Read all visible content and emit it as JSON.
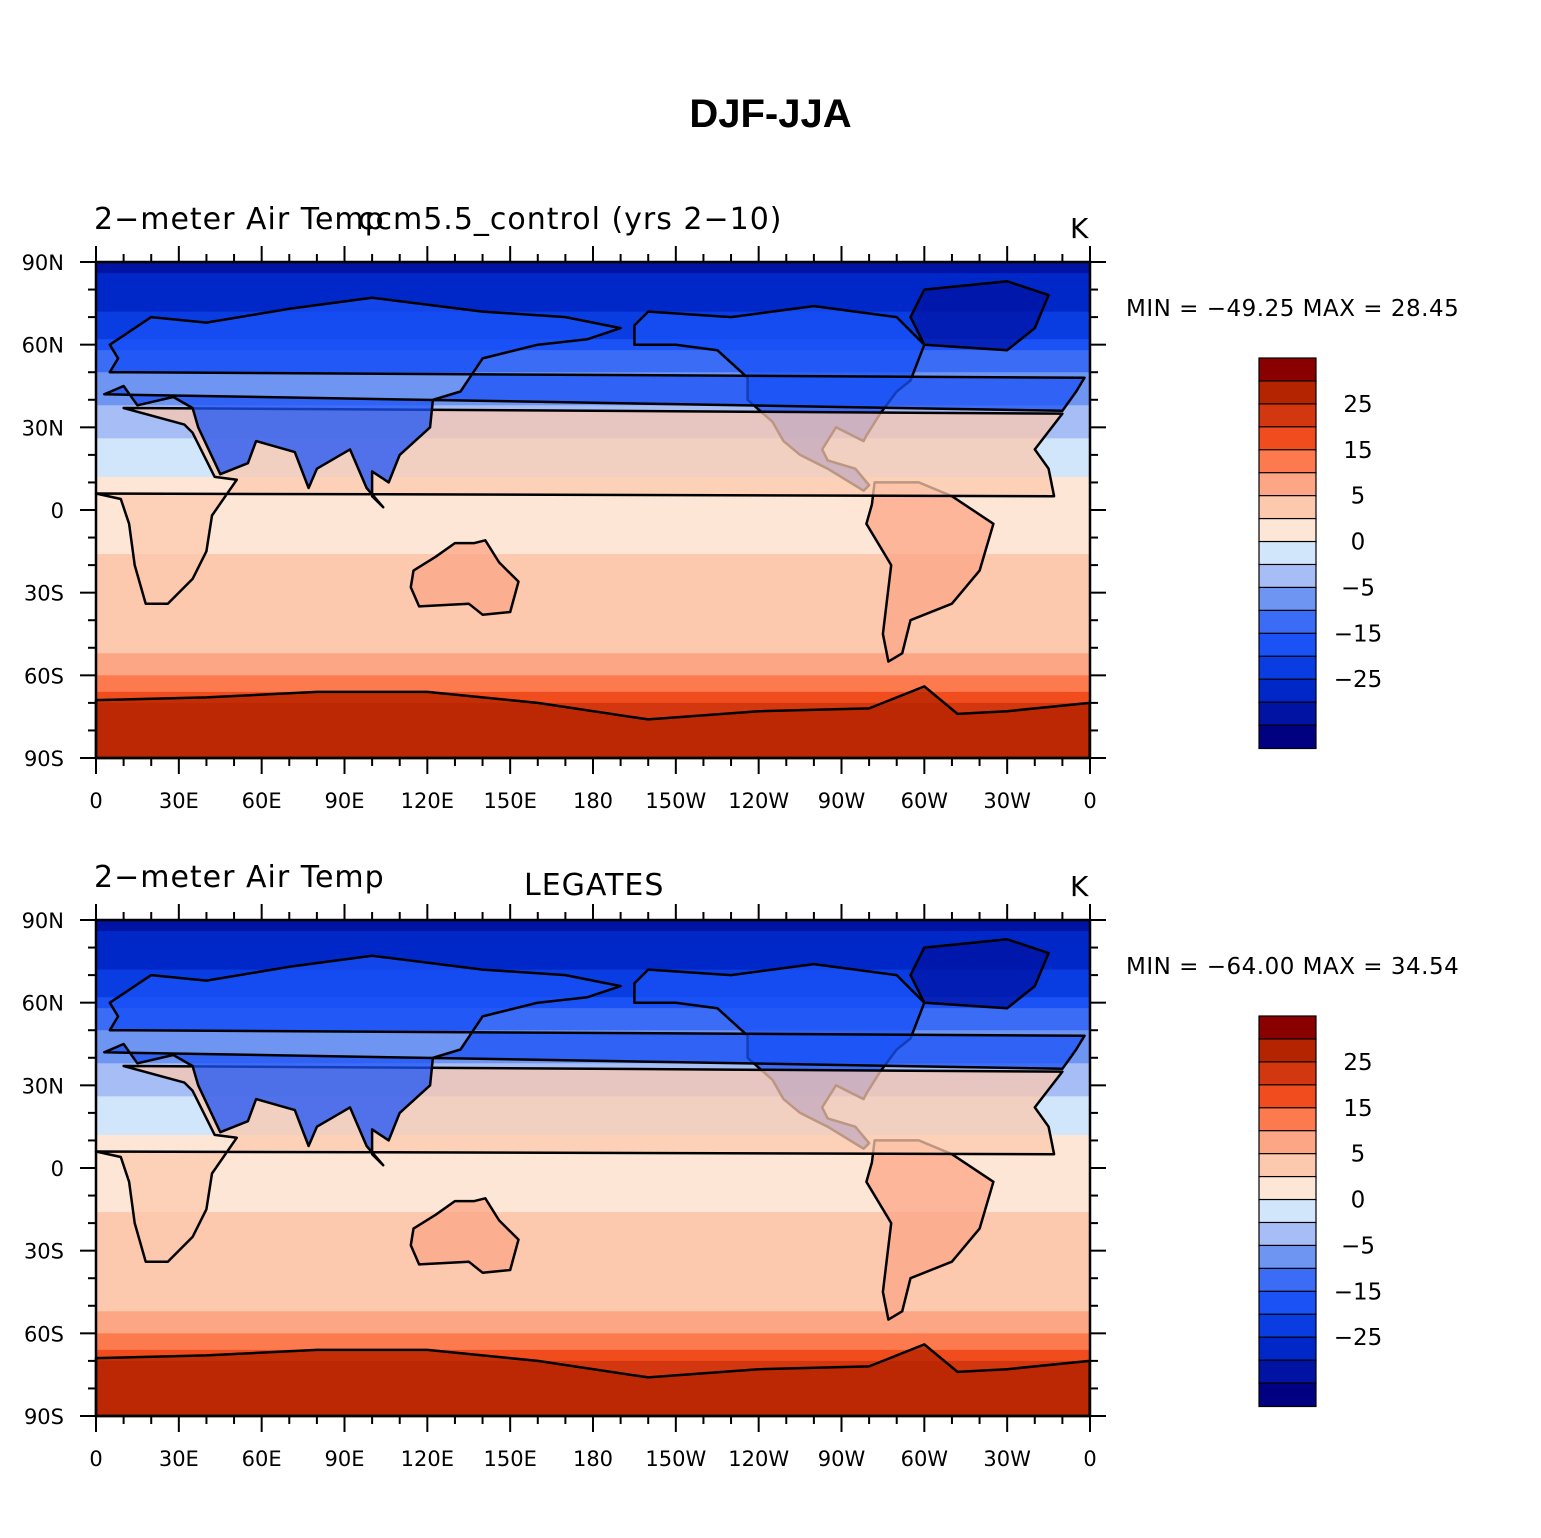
{
  "title": "DJF-JJA",
  "colorbar": {
    "colors": [
      "#000080",
      "#0013a3",
      "#0027c7",
      "#0a3de1",
      "#1a52f5",
      "#3a6cf5",
      "#6f95f2",
      "#a6bdf5",
      "#d2e6fb",
      "#fde6d6",
      "#fcc8ae",
      "#fca686",
      "#fc7a4e",
      "#f04c1e",
      "#d23710",
      "#b52400",
      "#8a0000"
    ],
    "labels": [
      "25",
      "15",
      "5",
      "0",
      "−5",
      "−15",
      "−25"
    ]
  },
  "axis": {
    "lat_labels": [
      "90N",
      "60N",
      "30N",
      "0",
      "30S",
      "60S",
      "90S"
    ],
    "lon_labels": [
      "0",
      "30E",
      "60E",
      "90E",
      "120E",
      "150E",
      "180",
      "150W",
      "120W",
      "90W",
      "60W",
      "30W",
      "0"
    ]
  },
  "panels": [
    {
      "left_title": "2−meter Air Temp",
      "center_title": "ccm5.5_control (yrs 2−10)",
      "units": "K",
      "stats": "MIN = −49.25  MAX =   28.45"
    },
    {
      "left_title": "2−meter Air Temp",
      "center_title": "LEGATES",
      "units": "K",
      "stats": "MIN = −64.00  MAX =   34.54"
    }
  ]
}
